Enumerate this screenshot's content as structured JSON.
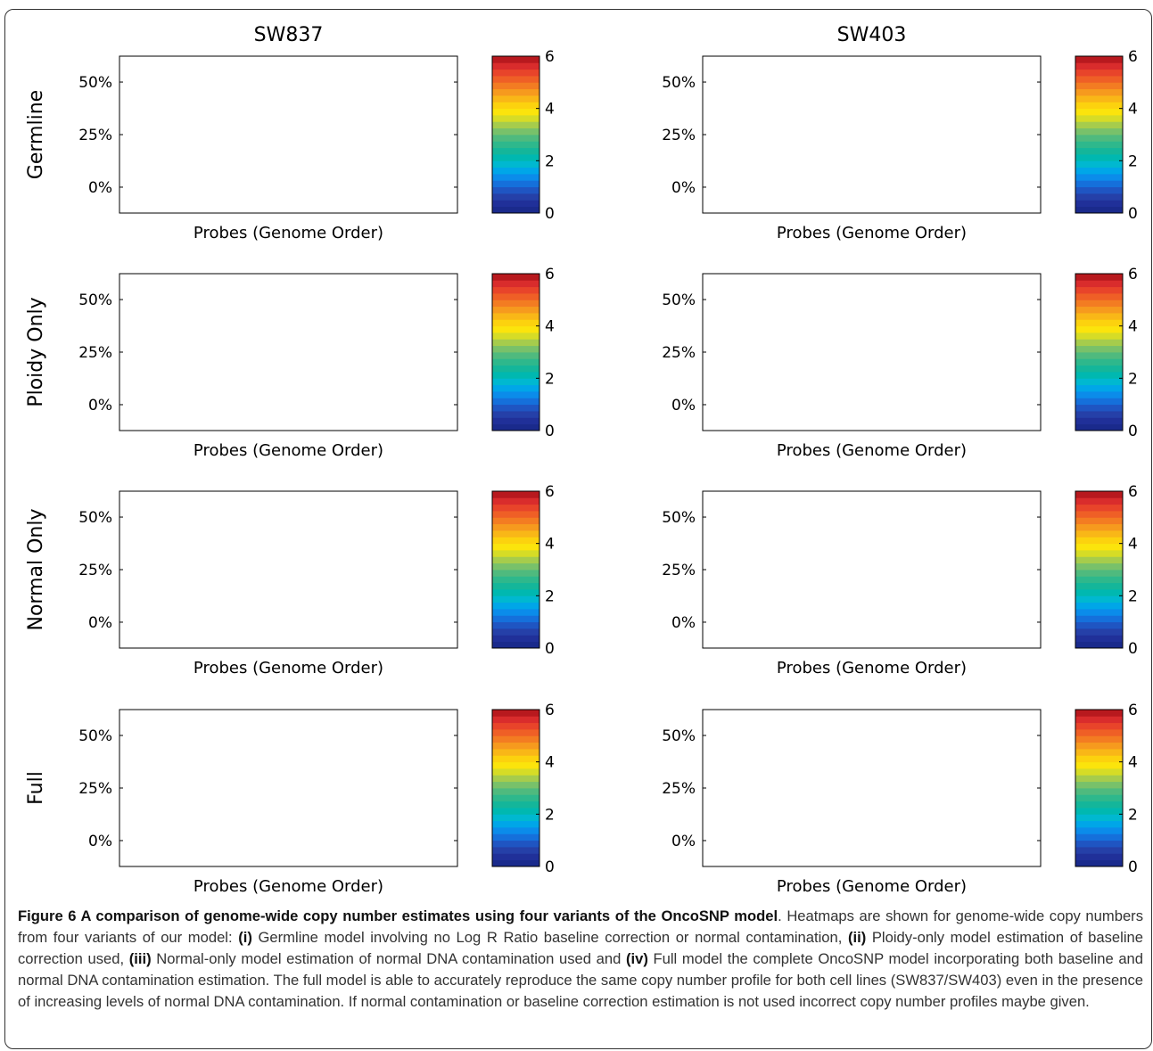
{
  "chart_data": {
    "type": "heatmap",
    "columns": [
      "SW837",
      "SW403"
    ],
    "rows": [
      "Germline",
      "Ploidy Only",
      "Normal Only",
      "Full"
    ],
    "xlabel": "Probes (Genome Order)",
    "yticks": [
      "0%",
      "25%",
      "50%"
    ],
    "colorbar": {
      "ticks": [
        "0",
        "2",
        "4",
        "6"
      ],
      "range": [
        0,
        6
      ],
      "levels": 24,
      "colors": [
        "#1a2a8c",
        "#203099",
        "#2540a8",
        "#1f55c2",
        "#1570db",
        "#0b8cea",
        "#00a6e8",
        "#00b8d0",
        "#00b8b0",
        "#14b69a",
        "#2eb88c",
        "#4fba7e",
        "#78c16a",
        "#a6cc4c",
        "#d6dc26",
        "#fbe40c",
        "#fcd20e",
        "#f9b717",
        "#f69a1e",
        "#f37c22",
        "#ef5f26",
        "#e8442a",
        "#d92c2c",
        "#b8191e"
      ]
    },
    "panels": [
      {
        "column": "SW837",
        "row": "Germline"
      },
      {
        "column": "SW403",
        "row": "Germline"
      },
      {
        "column": "SW837",
        "row": "Ploidy Only"
      },
      {
        "column": "SW403",
        "row": "Ploidy Only"
      },
      {
        "column": "SW837",
        "row": "Normal Only"
      },
      {
        "column": "SW403",
        "row": "Normal Only"
      },
      {
        "column": "SW837",
        "row": "Full"
      },
      {
        "column": "SW403",
        "row": "Full"
      }
    ]
  },
  "caption": {
    "title": "Figure 6 A comparison of genome-wide copy number estimates using four variants of the OncoSNP model",
    "segments": [
      {
        "t": ". Heatmaps are shown for genome-wide copy numbers from four variants of our model: ",
        "b": false
      },
      {
        "t": "(i)",
        "b": true
      },
      {
        "t": " Germline model involving no Log R Ratio baseline correction or normal contamination, ",
        "b": false
      },
      {
        "t": "(ii)",
        "b": true
      },
      {
        "t": " Ploidy-only model estimation of baseline correction used, ",
        "b": false
      },
      {
        "t": "(iii)",
        "b": true
      },
      {
        "t": " Normal-only model estimation of normal DNA contamination used and ",
        "b": false
      },
      {
        "t": "(iv)",
        "b": true
      },
      {
        "t": " Full model the complete OncoSNP model incorporating both baseline and normal DNA contamination estimation. The full model is able to accurately reproduce the same copy number profile for both cell lines (SW837/SW403) even in the presence of increasing levels of normal DNA contamination. If normal contamination or baseline correction estimation is not used incorrect copy number profiles maybe given.",
        "b": false
      }
    ]
  }
}
